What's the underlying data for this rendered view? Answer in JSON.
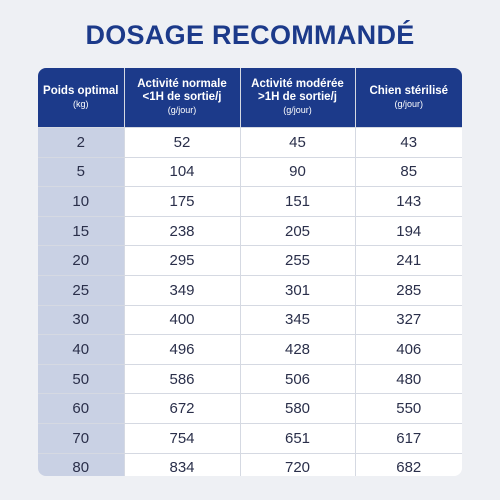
{
  "title": "DOSAGE RECOMMANDÉ",
  "colors": {
    "header_bg": "#1c3a8a",
    "weight_col_bg": "#c9d1e4",
    "title": "#1c3a8a"
  },
  "headers": [
    {
      "label": "Poids optimal",
      "unit": "(kg)"
    },
    {
      "label": "Activité normale <1H de sortie/j",
      "unit": "(g/jour)"
    },
    {
      "label": "Activité modérée >1H de sortie/j",
      "unit": "(g/jour)"
    },
    {
      "label": "Chien stérilisé",
      "unit": "(g/jour)"
    }
  ],
  "rows": [
    [
      "2",
      "52",
      "45",
      "43"
    ],
    [
      "5",
      "104",
      "90",
      "85"
    ],
    [
      "10",
      "175",
      "151",
      "143"
    ],
    [
      "15",
      "238",
      "205",
      "194"
    ],
    [
      "20",
      "295",
      "255",
      "241"
    ],
    [
      "25",
      "349",
      "301",
      "285"
    ],
    [
      "30",
      "400",
      "345",
      "327"
    ],
    [
      "40",
      "496",
      "428",
      "406"
    ],
    [
      "50",
      "586",
      "506",
      "480"
    ],
    [
      "60",
      "672",
      "580",
      "550"
    ],
    [
      "70",
      "754",
      "651",
      "617"
    ],
    [
      "80",
      "834",
      "720",
      "682"
    ]
  ]
}
